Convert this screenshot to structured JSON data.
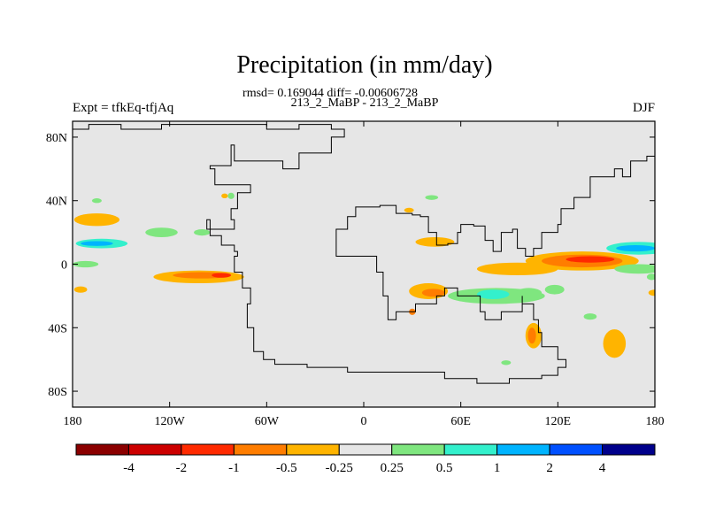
{
  "chart_data": {
    "type": "heatmap",
    "title": "Precipitation (in mm/day)",
    "subtitle": "rmsd= 0.169044 diff= -0.00606728",
    "case_label": "213_2_MaBP - 213_2_MaBP",
    "left_label": "Expt = tfkEq-tfjAq",
    "right_label": "DJF",
    "x_ticks": [
      "180",
      "120W",
      "60W",
      "0",
      "60E",
      "120E",
      "180"
    ],
    "x_tick_values": [
      -180,
      -120,
      -60,
      0,
      60,
      120,
      180
    ],
    "y_ticks": [
      "80N",
      "40N",
      "0",
      "40S",
      "80S"
    ],
    "y_tick_values": [
      80,
      40,
      0,
      -40,
      -80
    ],
    "xlim": [
      -180,
      180
    ],
    "ylim": [
      -90,
      90
    ],
    "colorbar": {
      "labels": [
        "-4",
        "-2",
        "-1",
        "-0.5",
        "-0.25",
        "0.25",
        "0.5",
        "1",
        "2",
        "4"
      ],
      "colors": [
        "#8b0000",
        "#cc0000",
        "#ff2a00",
        "#ff7d00",
        "#ffb400",
        "#e6e6e6",
        "#7fe67f",
        "#33f0cc",
        "#00b4ff",
        "#0050ff",
        "#00008b"
      ]
    },
    "background_color": "#e6e6e6",
    "anomaly_regions": [
      {
        "lon": -165,
        "lat": 28,
        "rx": 14,
        "ry": 4,
        "level": "-0.25"
      },
      {
        "lon": -162,
        "lat": 13,
        "rx": 16,
        "ry": 3,
        "level": "0.5"
      },
      {
        "lon": -165,
        "lat": 13,
        "rx": 10,
        "ry": 1.5,
        "level": "1"
      },
      {
        "lon": -172,
        "lat": 0,
        "rx": 8,
        "ry": 2,
        "level": "0.25"
      },
      {
        "lon": -175,
        "lat": -16,
        "rx": 4,
        "ry": 2,
        "level": "-0.25"
      },
      {
        "lon": -102,
        "lat": -8,
        "rx": 28,
        "ry": 4,
        "level": "-0.25"
      },
      {
        "lon": -100,
        "lat": -7,
        "rx": 18,
        "ry": 2,
        "level": "-0.5"
      },
      {
        "lon": -88,
        "lat": -7,
        "rx": 6,
        "ry": 1.5,
        "level": "-1"
      },
      {
        "lon": -125,
        "lat": 20,
        "rx": 10,
        "ry": 3,
        "level": "0.25"
      },
      {
        "lon": -100,
        "lat": 20,
        "rx": 5,
        "ry": 2,
        "level": "0.25"
      },
      {
        "lon": -86,
        "lat": 43,
        "rx": 2,
        "ry": 1.5,
        "level": "-0.25"
      },
      {
        "lon": -82,
        "lat": 43,
        "rx": 2,
        "ry": 2,
        "level": "0.25"
      },
      {
        "lon": -165,
        "lat": 40,
        "rx": 3,
        "ry": 1.5,
        "level": "0.25"
      },
      {
        "lon": 44,
        "lat": 14,
        "rx": 12,
        "ry": 3,
        "level": "-0.25"
      },
      {
        "lon": 40,
        "lat": -17,
        "rx": 12,
        "ry": 5,
        "level": "-0.25"
      },
      {
        "lon": 43,
        "lat": -18,
        "rx": 7,
        "ry": 2.5,
        "level": "-0.5"
      },
      {
        "lon": 30,
        "lat": -30,
        "rx": 2,
        "ry": 2,
        "level": "-0.5"
      },
      {
        "lon": 95,
        "lat": -3,
        "rx": 25,
        "ry": 4,
        "level": "-0.25"
      },
      {
        "lon": 135,
        "lat": 2,
        "rx": 35,
        "ry": 6,
        "level": "-0.25"
      },
      {
        "lon": 135,
        "lat": 2,
        "rx": 25,
        "ry": 4,
        "level": "-0.5"
      },
      {
        "lon": 140,
        "lat": 3,
        "rx": 15,
        "ry": 2,
        "level": "-1"
      },
      {
        "lon": 170,
        "lat": 10,
        "rx": 20,
        "ry": 4,
        "level": "0.5"
      },
      {
        "lon": 168,
        "lat": 10,
        "rx": 12,
        "ry": 2,
        "level": "1"
      },
      {
        "lon": 170,
        "lat": -3,
        "rx": 15,
        "ry": 3,
        "level": "0.25"
      },
      {
        "lon": 82,
        "lat": -20,
        "rx": 30,
        "ry": 5,
        "level": "0.25"
      },
      {
        "lon": 80,
        "lat": -19,
        "rx": 10,
        "ry": 3,
        "level": "0.5"
      },
      {
        "lon": 102,
        "lat": -18,
        "rx": 8,
        "ry": 3,
        "level": "0.25"
      },
      {
        "lon": 118,
        "lat": -16,
        "rx": 6,
        "ry": 3,
        "level": "0.25"
      },
      {
        "lon": 105,
        "lat": -45,
        "rx": 5,
        "ry": 8,
        "level": "-0.25"
      },
      {
        "lon": 104,
        "lat": -45,
        "rx": 2.5,
        "ry": 5,
        "level": "-0.5"
      },
      {
        "lon": 155,
        "lat": -50,
        "rx": 7,
        "ry": 9,
        "level": "-0.25"
      },
      {
        "lon": 140,
        "lat": -33,
        "rx": 4,
        "ry": 2,
        "level": "0.25"
      },
      {
        "lon": 88,
        "lat": -62,
        "rx": 3,
        "ry": 1.5,
        "level": "0.25"
      },
      {
        "lon": 42,
        "lat": 42,
        "rx": 4,
        "ry": 1.5,
        "level": "0.25"
      },
      {
        "lon": 28,
        "lat": 34,
        "rx": 3,
        "ry": 1.5,
        "level": "-0.25"
      },
      {
        "lon": 180,
        "lat": -18,
        "rx": 4,
        "ry": 2,
        "level": "-0.25"
      },
      {
        "lon": 178,
        "lat": -8,
        "rx": 3,
        "ry": 2,
        "level": "0.25"
      }
    ],
    "continents": [
      [
        [
          -180,
          85
        ],
        [
          -170,
          88
        ],
        [
          -150,
          85
        ],
        [
          -125,
          88
        ],
        [
          -60,
          85
        ],
        [
          -40,
          88
        ],
        [
          -20,
          85
        ],
        [
          -12,
          80
        ],
        [
          -20,
          70
        ],
        [
          -40,
          60
        ],
        [
          -50,
          65
        ],
        [
          -70,
          65
        ],
        [
          -80,
          75
        ],
        [
          -82,
          62
        ],
        [
          -95,
          60
        ],
        [
          -92,
          50
        ],
        [
          -78,
          50
        ],
        [
          -70,
          45
        ],
        [
          -78,
          35
        ],
        [
          -82,
          28
        ],
        [
          -80,
          22
        ],
        [
          -90,
          22
        ],
        [
          -97,
          28
        ],
        [
          -95,
          18
        ],
        [
          -88,
          12
        ],
        [
          -80,
          8
        ],
        [
          -78,
          5
        ],
        [
          -80,
          -5
        ],
        [
          -75,
          -15
        ],
        [
          -70,
          -25
        ],
        [
          -72,
          -40
        ],
        [
          -68,
          -55
        ],
        [
          -62,
          -60
        ],
        [
          -55,
          -63
        ],
        [
          -35,
          -65
        ],
        [
          -10,
          -68
        ],
        [
          20,
          -68
        ],
        [
          50,
          -72
        ],
        [
          70,
          -75
        ],
        [
          90,
          -72
        ],
        [
          110,
          -70
        ],
        [
          120,
          -65
        ],
        [
          125,
          -60
        ],
        [
          120,
          -52
        ],
        [
          110,
          -43
        ],
        [
          108,
          -35
        ],
        [
          105,
          -25
        ],
        [
          98,
          -20
        ],
        [
          98,
          -30
        ],
        [
          85,
          -35
        ],
        [
          75,
          -30
        ],
        [
          72,
          -20
        ],
        [
          58,
          -15
        ],
        [
          50,
          -20
        ],
        [
          45,
          -25
        ],
        [
          32,
          -30
        ],
        [
          20,
          -35
        ],
        [
          15,
          -20
        ],
        [
          12,
          -5
        ],
        [
          8,
          5
        ],
        [
          0,
          5
        ],
        [
          -10,
          5
        ],
        [
          -17,
          15
        ],
        [
          -17,
          22
        ],
        [
          -10,
          30
        ],
        [
          -5,
          36
        ],
        [
          10,
          37
        ],
        [
          20,
          32
        ],
        [
          30,
          31
        ],
        [
          35,
          30
        ],
        [
          40,
          20
        ],
        [
          45,
          12
        ],
        [
          52,
          13
        ],
        [
          58,
          20
        ],
        [
          60,
          25
        ],
        [
          68,
          24
        ],
        [
          75,
          15
        ],
        [
          80,
          8
        ],
        [
          85,
          20
        ],
        [
          92,
          22
        ],
        [
          95,
          10
        ],
        [
          100,
          5
        ],
        [
          105,
          10
        ],
        [
          110,
          20
        ],
        [
          120,
          25
        ],
        [
          122,
          35
        ],
        [
          130,
          42
        ],
        [
          140,
          45
        ],
        [
          140,
          55
        ],
        [
          155,
          60
        ],
        [
          160,
          55
        ],
        [
          165,
          65
        ],
        [
          175,
          68
        ],
        [
          180,
          70
        ]
      ]
    ]
  }
}
